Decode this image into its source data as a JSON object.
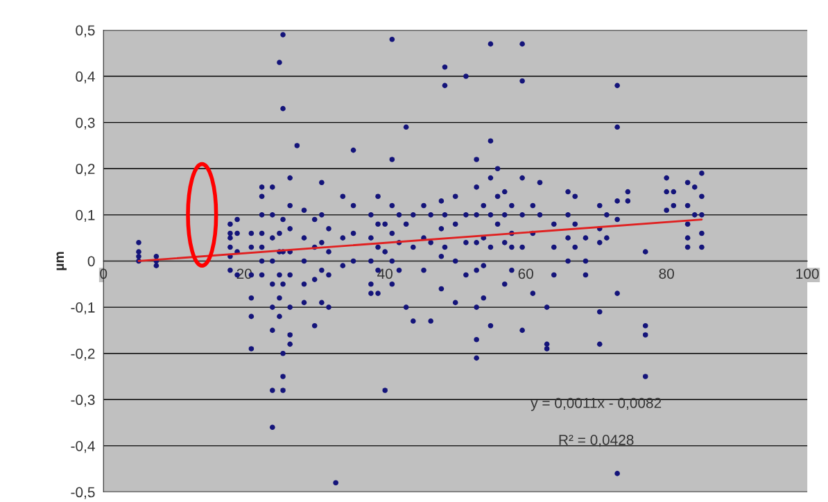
{
  "chart_data": {
    "type": "scatter",
    "ylabel": "µm",
    "xlim": [
      0,
      100
    ],
    "ylim": [
      -0.5,
      0.5
    ],
    "xticks": [
      0,
      20,
      40,
      60,
      80,
      100
    ],
    "yticks": [
      {
        "value": -0.5,
        "label": "-0,5"
      },
      {
        "value": -0.4,
        "label": "-0,4"
      },
      {
        "value": -0.3,
        "label": "-0,3"
      },
      {
        "value": -0.2,
        "label": "-0,2"
      },
      {
        "value": -0.1,
        "label": "-0,1"
      },
      {
        "value": 0,
        "label": "0"
      },
      {
        "value": 0.1,
        "label": "0,1"
      },
      {
        "value": 0.2,
        "label": "0,2"
      },
      {
        "value": 0.3,
        "label": "0,3"
      },
      {
        "value": 0.4,
        "label": "0,4"
      },
      {
        "value": 0.5,
        "label": "0,5"
      }
    ],
    "grid": "y",
    "annotations": [
      "y = 0,0011x - 0,0082",
      "R² = 0,0428"
    ],
    "series": [
      {
        "marker": "circle",
        "color": "#14147a",
        "x": [
          5,
          5,
          5,
          5,
          7.5,
          7.5,
          7.5,
          18,
          18,
          18,
          18,
          18,
          18,
          19,
          19,
          19,
          19,
          21,
          21,
          21,
          21,
          21,
          21,
          22.5,
          22.5,
          22.5,
          22.5,
          22.5,
          22.5,
          22.5,
          24,
          24,
          24,
          24,
          24,
          24,
          24,
          24,
          24,
          25,
          25,
          25,
          25,
          25,
          25,
          25.5,
          25.5,
          25.5,
          25.5,
          25.5,
          25.5,
          25.5,
          25.5,
          26.5,
          26.5,
          26.5,
          26.5,
          26.5,
          26.5,
          26.5,
          26.5,
          27.5,
          28.5,
          28.5,
          28.5,
          28.5,
          28.5,
          30,
          30,
          30,
          30,
          31,
          31,
          31,
          31,
          31,
          32,
          32,
          32,
          32,
          33,
          34,
          34,
          34,
          35.5,
          35.5,
          35.5,
          35.5,
          38,
          38,
          38,
          38,
          38,
          39,
          39,
          39,
          39,
          39,
          40,
          40,
          40,
          41,
          41,
          41,
          41,
          41,
          41,
          42,
          42,
          42,
          43,
          43,
          43,
          44,
          44,
          44,
          45.5,
          45.5,
          45.5,
          46.5,
          46.5,
          46.5,
          48,
          48,
          48,
          48,
          48.5,
          48.5,
          48.5,
          48.5,
          50,
          50,
          50,
          50,
          51.5,
          51.5,
          51.5,
          51.5,
          53,
          53,
          53,
          53,
          53,
          53,
          53,
          53,
          54,
          54,
          54,
          54,
          55,
          55,
          55,
          55,
          55,
          55,
          56,
          56,
          56,
          57,
          57,
          57,
          57,
          58,
          58,
          58,
          58,
          59.5,
          59.5,
          59.5,
          59.5,
          59.5,
          59.5,
          61,
          61,
          61,
          62,
          62,
          63,
          63,
          63,
          64,
          64,
          64,
          66,
          66,
          66,
          66,
          67,
          67,
          67,
          68.5,
          68.5,
          68.5,
          70.5,
          70.5,
          70.5,
          70.5,
          70.5,
          71.5,
          71.5,
          73,
          73,
          73,
          73,
          73,
          73,
          74.5,
          74.5,
          77,
          77,
          77,
          77,
          80,
          80,
          80,
          81,
          81,
          83,
          83,
          83,
          83,
          83,
          84,
          84,
          85,
          85,
          85,
          85,
          85
        ],
        "values": [
          0.04,
          0.02,
          0.01,
          0.0,
          0.01,
          -0.01,
          0.0,
          0.08,
          0.06,
          0.05,
          0.03,
          0.01,
          -0.02,
          0.09,
          0.06,
          0.02,
          -0.03,
          0.06,
          0.03,
          -0.03,
          -0.08,
          -0.12,
          -0.19,
          0.16,
          0.14,
          0.1,
          0.06,
          0.03,
          0.0,
          -0.03,
          0.16,
          0.1,
          0.05,
          0.0,
          -0.05,
          -0.1,
          -0.28,
          -0.36,
          -0.15,
          0.43,
          0.06,
          0.02,
          -0.03,
          -0.08,
          -0.12,
          0.49,
          0.33,
          0.09,
          0.02,
          -0.05,
          -0.2,
          -0.25,
          -0.28,
          0.18,
          0.12,
          0.07,
          0.02,
          -0.03,
          -0.1,
          -0.16,
          -0.18,
          0.25,
          0.11,
          0.05,
          0.0,
          -0.05,
          -0.09,
          0.09,
          0.03,
          -0.04,
          -0.14,
          0.17,
          0.1,
          0.04,
          -0.02,
          -0.09,
          0.07,
          0.02,
          -0.03,
          -0.1,
          -0.48,
          0.14,
          0.05,
          -0.01,
          0.24,
          0.12,
          0.06,
          0.0,
          0.1,
          0.05,
          0.0,
          -0.05,
          -0.07,
          0.14,
          0.08,
          0.03,
          -0.02,
          -0.07,
          0.08,
          0.02,
          -0.28,
          0.48,
          0.22,
          0.12,
          0.06,
          0.0,
          -0.05,
          0.1,
          0.04,
          -0.02,
          0.29,
          0.08,
          -0.1,
          0.1,
          0.03,
          -0.13,
          0.12,
          0.05,
          -0.02,
          0.1,
          0.04,
          -0.13,
          0.13,
          0.07,
          0.01,
          -0.06,
          0.42,
          0.38,
          0.1,
          0.03,
          0.14,
          0.08,
          0.0,
          -0.09,
          0.4,
          0.1,
          0.04,
          -0.03,
          0.22,
          0.16,
          0.1,
          0.04,
          -0.02,
          -0.1,
          -0.17,
          -0.21,
          0.12,
          0.05,
          -0.01,
          -0.08,
          0.47,
          0.26,
          0.18,
          0.1,
          0.03,
          -0.14,
          0.2,
          0.14,
          0.08,
          0.15,
          0.1,
          0.04,
          -0.05,
          0.12,
          0.06,
          0.03,
          -0.02,
          0.47,
          0.39,
          0.18,
          0.1,
          0.03,
          -0.15,
          0.12,
          0.06,
          -0.07,
          0.17,
          0.1,
          -0.1,
          -0.18,
          -0.19,
          0.08,
          0.03,
          -0.03,
          0.15,
          0.1,
          0.05,
          0.0,
          0.14,
          0.08,
          0.03,
          0.05,
          0.0,
          -0.03,
          0.12,
          0.07,
          0.04,
          -0.11,
          -0.18,
          0.1,
          0.05,
          0.38,
          0.29,
          0.13,
          0.09,
          -0.07,
          -0.46,
          0.15,
          0.13,
          0.02,
          -0.14,
          -0.16,
          -0.25,
          0.18,
          0.15,
          0.11,
          0.15,
          0.12,
          0.17,
          0.12,
          0.08,
          0.05,
          0.03,
          0.16,
          0.1,
          0.19,
          0.14,
          0.1,
          0.06,
          0.03
        ]
      },
      {
        "type": "line",
        "marker": "none",
        "color": "#e02020",
        "x": [
          5,
          85
        ],
        "values": [
          0.0,
          0.09
        ]
      }
    ]
  }
}
